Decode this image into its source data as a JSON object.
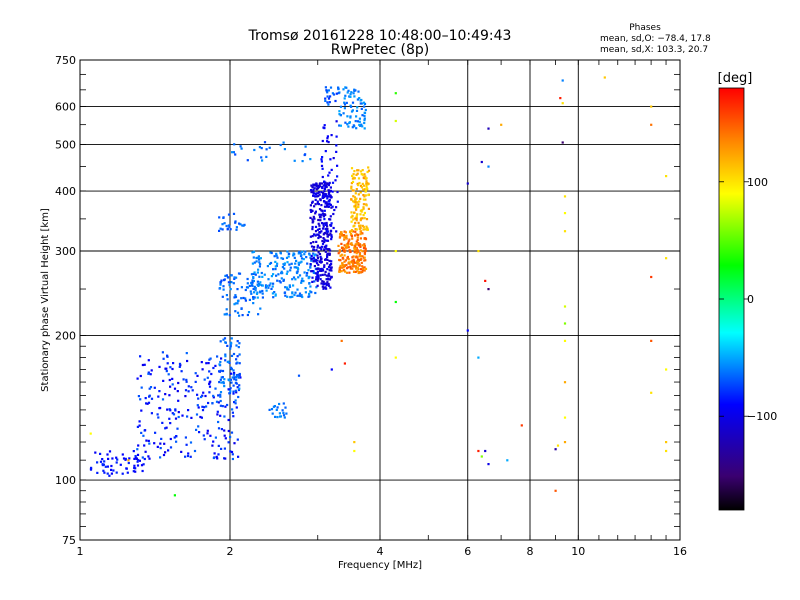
{
  "chart_data": {
    "type": "scatter",
    "title": "Tromsø 20161228 10:48:00–10:49:43",
    "subtitle": "RwPretec (8p)",
    "xlabel": "Frequency [MHz]",
    "ylabel": "Stationary phase Virtual Height [km]",
    "x_scale": "log",
    "y_scale": "log",
    "xlim": [
      1,
      16
    ],
    "ylim": [
      75,
      750
    ],
    "x_ticks": [
      1,
      2,
      4,
      6,
      8,
      10,
      16
    ],
    "x_tick_labels": [
      "1",
      "2",
      "4",
      "6",
      "8",
      "10",
      "16"
    ],
    "y_ticks": [
      75,
      100,
      200,
      300,
      400,
      500,
      600,
      750
    ],
    "y_tick_labels": [
      "75",
      "100",
      "200",
      "300",
      "400",
      "500",
      "600",
      "750"
    ],
    "grid": true,
    "phases_box": {
      "title": "Phases",
      "line1": "mean, sd,O: −78.4, 17.8",
      "line2": "mean, sd,X: 103.3, 20.7"
    },
    "colorbar": {
      "label": "[deg]",
      "range": [
        -180,
        180
      ],
      "tick_values": [
        100,
        0,
        -100
      ],
      "tick_labels": [
        "100",
        "0",
        "−100"
      ]
    },
    "clusters": [
      {
        "x": [
          1.05,
          1.35
        ],
        "y": [
          102,
          115
        ],
        "phase": [
          -95,
          -80
        ],
        "n": 60
      },
      {
        "x": [
          1.3,
          2.1
        ],
        "y": [
          110,
          185
        ],
        "phase": [
          -100,
          -65
        ],
        "n": 260
      },
      {
        "x": [
          1.9,
          2.1
        ],
        "y": [
          140,
          200
        ],
        "phase": [
          -75,
          -55
        ],
        "n": 70
      },
      {
        "x": [
          2.4,
          2.6
        ],
        "y": [
          135,
          145
        ],
        "phase": [
          -70,
          -55
        ],
        "n": 20
      },
      {
        "x": [
          1.9,
          2.3
        ],
        "y": [
          220,
          270
        ],
        "phase": [
          -75,
          -55
        ],
        "n": 80
      },
      {
        "x": [
          1.9,
          2.15
        ],
        "y": [
          330,
          360
        ],
        "phase": [
          -75,
          -60
        ],
        "n": 25
      },
      {
        "x": [
          2.2,
          3.0
        ],
        "y": [
          240,
          300
        ],
        "phase": [
          -70,
          -50
        ],
        "n": 220
      },
      {
        "x": [
          2.9,
          3.2
        ],
        "y": [
          250,
          420
        ],
        "phase": [
          -115,
          -95
        ],
        "n": 320
      },
      {
        "x": [
          3.05,
          3.3
        ],
        "y": [
          320,
          560
        ],
        "phase": [
          -105,
          -85
        ],
        "n": 60
      },
      {
        "x": [
          3.3,
          3.75
        ],
        "y": [
          270,
          330
        ],
        "phase": [
          120,
          155
        ],
        "n": 220
      },
      {
        "x": [
          3.5,
          3.8
        ],
        "y": [
          330,
          450
        ],
        "phase": [
          100,
          130
        ],
        "n": 140
      },
      {
        "x": [
          3.3,
          3.75
        ],
        "y": [
          540,
          660
        ],
        "phase": [
          -70,
          -50
        ],
        "n": 80
      },
      {
        "x": [
          2.0,
          2.9
        ],
        "y": [
          460,
          510
        ],
        "phase": [
          -75,
          -55
        ],
        "n": 25
      },
      {
        "x": [
          3.1,
          3.3
        ],
        "y": [
          600,
          660
        ],
        "phase": [
          -80,
          -60
        ],
        "n": 20
      }
    ],
    "points": [
      {
        "x": 4.3,
        "y": 640,
        "phase": 40
      },
      {
        "x": 4.3,
        "y": 560,
        "phase": 80
      },
      {
        "x": 4.3,
        "y": 300,
        "phase": 90
      },
      {
        "x": 4.3,
        "y": 235,
        "phase": 30
      },
      {
        "x": 4.3,
        "y": 180,
        "phase": 90
      },
      {
        "x": 3.55,
        "y": 120,
        "phase": 110
      },
      {
        "x": 3.55,
        "y": 115,
        "phase": 90
      },
      {
        "x": 3.4,
        "y": 175,
        "phase": 170
      },
      {
        "x": 3.2,
        "y": 170,
        "phase": -90
      },
      {
        "x": 2.75,
        "y": 165,
        "phase": -70
      },
      {
        "x": 3.35,
        "y": 195,
        "phase": 140
      },
      {
        "x": 6.0,
        "y": 415,
        "phase": -110
      },
      {
        "x": 6.0,
        "y": 205,
        "phase": -90
      },
      {
        "x": 6.3,
        "y": 300,
        "phase": 100
      },
      {
        "x": 6.3,
        "y": 180,
        "phase": -50
      },
      {
        "x": 6.4,
        "y": 460,
        "phase": -110
      },
      {
        "x": 6.6,
        "y": 540,
        "phase": -120
      },
      {
        "x": 6.6,
        "y": 450,
        "phase": -60
      },
      {
        "x": 7.0,
        "y": 550,
        "phase": 120
      },
      {
        "x": 6.5,
        "y": 260,
        "phase": 175
      },
      {
        "x": 6.6,
        "y": 250,
        "phase": -150
      },
      {
        "x": 6.3,
        "y": 115,
        "phase": 170
      },
      {
        "x": 6.5,
        "y": 115,
        "phase": -110
      },
      {
        "x": 6.6,
        "y": 108,
        "phase": -100
      },
      {
        "x": 6.4,
        "y": 112,
        "phase": 60
      },
      {
        "x": 7.2,
        "y": 110,
        "phase": -50
      },
      {
        "x": 7.7,
        "y": 130,
        "phase": 160
      },
      {
        "x": 9.0,
        "y": 116,
        "phase": -130
      },
      {
        "x": 9.1,
        "y": 118,
        "phase": 100
      },
      {
        "x": 9.0,
        "y": 95,
        "phase": 150
      },
      {
        "x": 9.3,
        "y": 680,
        "phase": -60
      },
      {
        "x": 9.2,
        "y": 625,
        "phase": 170
      },
      {
        "x": 9.3,
        "y": 610,
        "phase": 100
      },
      {
        "x": 9.3,
        "y": 505,
        "phase": -150
      },
      {
        "x": 9.4,
        "y": 390,
        "phase": 100
      },
      {
        "x": 9.4,
        "y": 360,
        "phase": 90
      },
      {
        "x": 9.4,
        "y": 330,
        "phase": 100
      },
      {
        "x": 9.4,
        "y": 230,
        "phase": 80
      },
      {
        "x": 9.4,
        "y": 212,
        "phase": 60
      },
      {
        "x": 9.4,
        "y": 195,
        "phase": 90
      },
      {
        "x": 9.4,
        "y": 160,
        "phase": 120
      },
      {
        "x": 9.4,
        "y": 135,
        "phase": 90
      },
      {
        "x": 9.4,
        "y": 120,
        "phase": 120
      },
      {
        "x": 11.3,
        "y": 690,
        "phase": 110
      },
      {
        "x": 14.0,
        "y": 600,
        "phase": 110
      },
      {
        "x": 14.0,
        "y": 550,
        "phase": 140
      },
      {
        "x": 14.0,
        "y": 265,
        "phase": 160
      },
      {
        "x": 14.0,
        "y": 195,
        "phase": 150
      },
      {
        "x": 14.0,
        "y": 152,
        "phase": 100
      },
      {
        "x": 15.0,
        "y": 430,
        "phase": 100
      },
      {
        "x": 15.0,
        "y": 290,
        "phase": 100
      },
      {
        "x": 15.0,
        "y": 170,
        "phase": 90
      },
      {
        "x": 15.0,
        "y": 120,
        "phase": 110
      },
      {
        "x": 15.0,
        "y": 115,
        "phase": 100
      },
      {
        "x": 1.55,
        "y": 93,
        "phase": 30
      },
      {
        "x": 1.25,
        "y": 110,
        "phase": 120
      },
      {
        "x": 1.05,
        "y": 125,
        "phase": 90
      }
    ]
  }
}
